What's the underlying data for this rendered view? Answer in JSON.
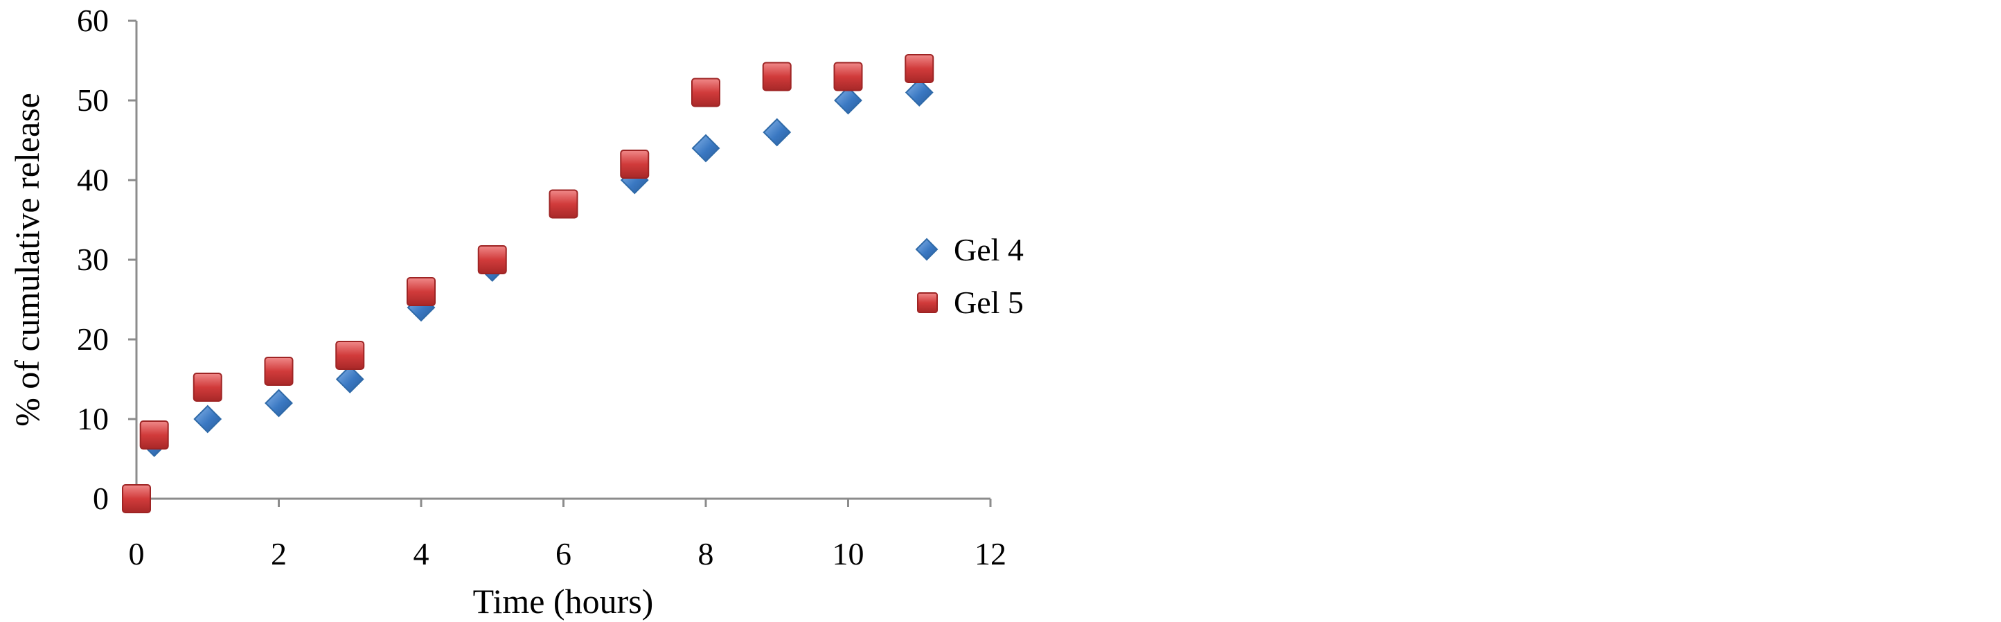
{
  "chart_data": {
    "type": "scatter",
    "title": "",
    "xlabel": "Time (hours)",
    "ylabel": "% of cumulative release",
    "xlim": [
      0,
      12
    ],
    "ylim": [
      0,
      60
    ],
    "x_ticks": [
      "0",
      "2",
      "4",
      "6",
      "8",
      "10",
      "12"
    ],
    "y_ticks": [
      "0",
      "10",
      "20",
      "30",
      "40",
      "50",
      "60"
    ],
    "grid": false,
    "legend_position": "right",
    "series": [
      {
        "name": "Gel 4",
        "marker": "diamond",
        "color": "#3a78c2",
        "x": [
          0,
          0.25,
          1,
          2,
          3,
          4,
          5,
          6,
          7,
          8,
          9,
          10,
          11
        ],
        "y": [
          0,
          7,
          10,
          12,
          15,
          24,
          29,
          37,
          40,
          44,
          46,
          50,
          51
        ]
      },
      {
        "name": "Gel 5",
        "marker": "square",
        "color": "#d13b3b",
        "x": [
          0,
          0.25,
          1,
          2,
          3,
          4,
          5,
          6,
          7,
          8,
          9,
          10,
          11
        ],
        "y": [
          0,
          8,
          14,
          16,
          18,
          26,
          30,
          37,
          42,
          51,
          53,
          53,
          54
        ]
      }
    ]
  }
}
